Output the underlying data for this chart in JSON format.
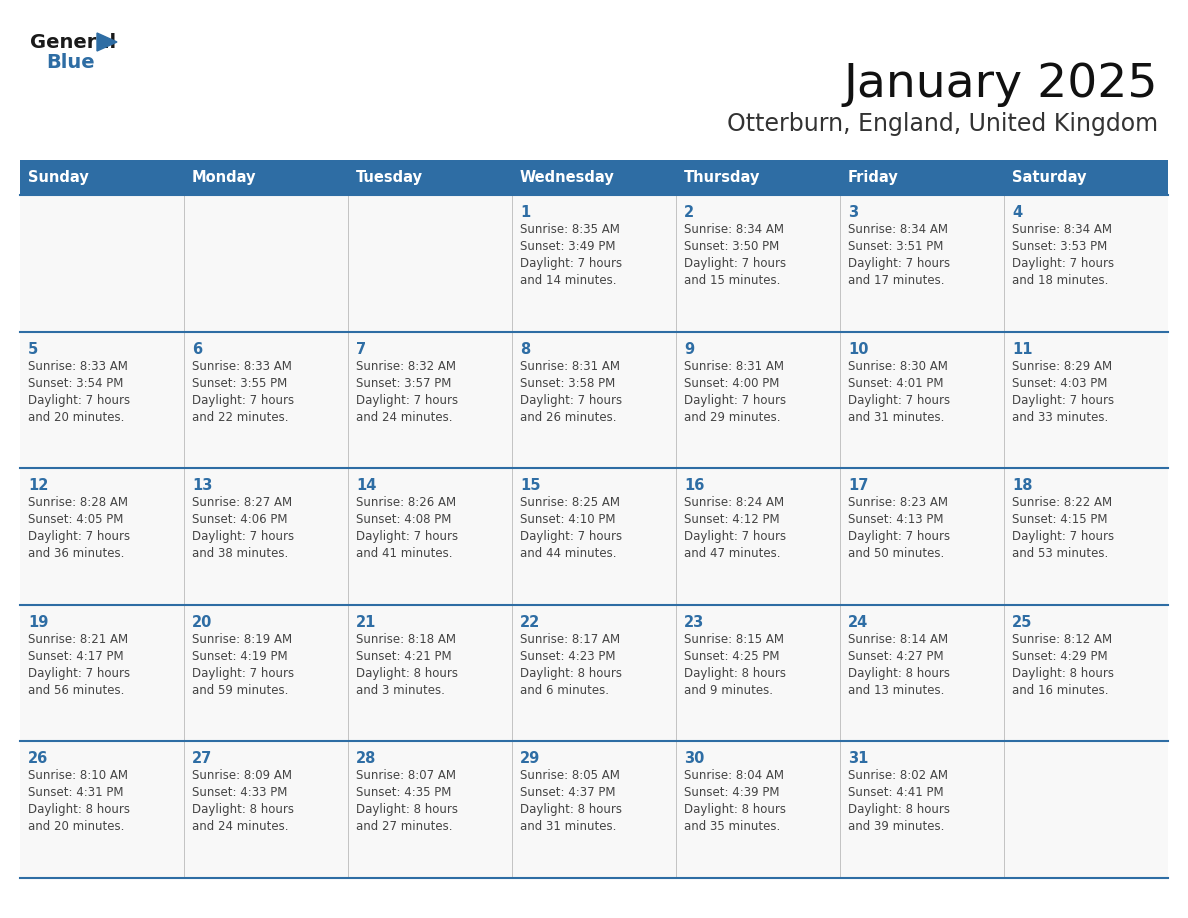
{
  "title": "January 2025",
  "subtitle": "Otterburn, England, United Kingdom",
  "header_bg": "#2E6DA4",
  "header_text_color": "#FFFFFF",
  "cell_bg": "#F8F8F8",
  "cell_bg_alt": "#FFFFFF",
  "day_number_color": "#2E6DA4",
  "text_color": "#444444",
  "line_color": "#2E6DA4",
  "border_color": "#2E6DA4",
  "days_of_week": [
    "Sunday",
    "Monday",
    "Tuesday",
    "Wednesday",
    "Thursday",
    "Friday",
    "Saturday"
  ],
  "weeks": [
    [
      {
        "date": "",
        "lines": []
      },
      {
        "date": "",
        "lines": []
      },
      {
        "date": "",
        "lines": []
      },
      {
        "date": "1",
        "lines": [
          "Sunrise: 8:35 AM",
          "Sunset: 3:49 PM",
          "Daylight: 7 hours",
          "and 14 minutes."
        ]
      },
      {
        "date": "2",
        "lines": [
          "Sunrise: 8:34 AM",
          "Sunset: 3:50 PM",
          "Daylight: 7 hours",
          "and 15 minutes."
        ]
      },
      {
        "date": "3",
        "lines": [
          "Sunrise: 8:34 AM",
          "Sunset: 3:51 PM",
          "Daylight: 7 hours",
          "and 17 minutes."
        ]
      },
      {
        "date": "4",
        "lines": [
          "Sunrise: 8:34 AM",
          "Sunset: 3:53 PM",
          "Daylight: 7 hours",
          "and 18 minutes."
        ]
      }
    ],
    [
      {
        "date": "5",
        "lines": [
          "Sunrise: 8:33 AM",
          "Sunset: 3:54 PM",
          "Daylight: 7 hours",
          "and 20 minutes."
        ]
      },
      {
        "date": "6",
        "lines": [
          "Sunrise: 8:33 AM",
          "Sunset: 3:55 PM",
          "Daylight: 7 hours",
          "and 22 minutes."
        ]
      },
      {
        "date": "7",
        "lines": [
          "Sunrise: 8:32 AM",
          "Sunset: 3:57 PM",
          "Daylight: 7 hours",
          "and 24 minutes."
        ]
      },
      {
        "date": "8",
        "lines": [
          "Sunrise: 8:31 AM",
          "Sunset: 3:58 PM",
          "Daylight: 7 hours",
          "and 26 minutes."
        ]
      },
      {
        "date": "9",
        "lines": [
          "Sunrise: 8:31 AM",
          "Sunset: 4:00 PM",
          "Daylight: 7 hours",
          "and 29 minutes."
        ]
      },
      {
        "date": "10",
        "lines": [
          "Sunrise: 8:30 AM",
          "Sunset: 4:01 PM",
          "Daylight: 7 hours",
          "and 31 minutes."
        ]
      },
      {
        "date": "11",
        "lines": [
          "Sunrise: 8:29 AM",
          "Sunset: 4:03 PM",
          "Daylight: 7 hours",
          "and 33 minutes."
        ]
      }
    ],
    [
      {
        "date": "12",
        "lines": [
          "Sunrise: 8:28 AM",
          "Sunset: 4:05 PM",
          "Daylight: 7 hours",
          "and 36 minutes."
        ]
      },
      {
        "date": "13",
        "lines": [
          "Sunrise: 8:27 AM",
          "Sunset: 4:06 PM",
          "Daylight: 7 hours",
          "and 38 minutes."
        ]
      },
      {
        "date": "14",
        "lines": [
          "Sunrise: 8:26 AM",
          "Sunset: 4:08 PM",
          "Daylight: 7 hours",
          "and 41 minutes."
        ]
      },
      {
        "date": "15",
        "lines": [
          "Sunrise: 8:25 AM",
          "Sunset: 4:10 PM",
          "Daylight: 7 hours",
          "and 44 minutes."
        ]
      },
      {
        "date": "16",
        "lines": [
          "Sunrise: 8:24 AM",
          "Sunset: 4:12 PM",
          "Daylight: 7 hours",
          "and 47 minutes."
        ]
      },
      {
        "date": "17",
        "lines": [
          "Sunrise: 8:23 AM",
          "Sunset: 4:13 PM",
          "Daylight: 7 hours",
          "and 50 minutes."
        ]
      },
      {
        "date": "18",
        "lines": [
          "Sunrise: 8:22 AM",
          "Sunset: 4:15 PM",
          "Daylight: 7 hours",
          "and 53 minutes."
        ]
      }
    ],
    [
      {
        "date": "19",
        "lines": [
          "Sunrise: 8:21 AM",
          "Sunset: 4:17 PM",
          "Daylight: 7 hours",
          "and 56 minutes."
        ]
      },
      {
        "date": "20",
        "lines": [
          "Sunrise: 8:19 AM",
          "Sunset: 4:19 PM",
          "Daylight: 7 hours",
          "and 59 minutes."
        ]
      },
      {
        "date": "21",
        "lines": [
          "Sunrise: 8:18 AM",
          "Sunset: 4:21 PM",
          "Daylight: 8 hours",
          "and 3 minutes."
        ]
      },
      {
        "date": "22",
        "lines": [
          "Sunrise: 8:17 AM",
          "Sunset: 4:23 PM",
          "Daylight: 8 hours",
          "and 6 minutes."
        ]
      },
      {
        "date": "23",
        "lines": [
          "Sunrise: 8:15 AM",
          "Sunset: 4:25 PM",
          "Daylight: 8 hours",
          "and 9 minutes."
        ]
      },
      {
        "date": "24",
        "lines": [
          "Sunrise: 8:14 AM",
          "Sunset: 4:27 PM",
          "Daylight: 8 hours",
          "and 13 minutes."
        ]
      },
      {
        "date": "25",
        "lines": [
          "Sunrise: 8:12 AM",
          "Sunset: 4:29 PM",
          "Daylight: 8 hours",
          "and 16 minutes."
        ]
      }
    ],
    [
      {
        "date": "26",
        "lines": [
          "Sunrise: 8:10 AM",
          "Sunset: 4:31 PM",
          "Daylight: 8 hours",
          "and 20 minutes."
        ]
      },
      {
        "date": "27",
        "lines": [
          "Sunrise: 8:09 AM",
          "Sunset: 4:33 PM",
          "Daylight: 8 hours",
          "and 24 minutes."
        ]
      },
      {
        "date": "28",
        "lines": [
          "Sunrise: 8:07 AM",
          "Sunset: 4:35 PM",
          "Daylight: 8 hours",
          "and 27 minutes."
        ]
      },
      {
        "date": "29",
        "lines": [
          "Sunrise: 8:05 AM",
          "Sunset: 4:37 PM",
          "Daylight: 8 hours",
          "and 31 minutes."
        ]
      },
      {
        "date": "30",
        "lines": [
          "Sunrise: 8:04 AM",
          "Sunset: 4:39 PM",
          "Daylight: 8 hours",
          "and 35 minutes."
        ]
      },
      {
        "date": "31",
        "lines": [
          "Sunrise: 8:02 AM",
          "Sunset: 4:41 PM",
          "Daylight: 8 hours",
          "and 39 minutes."
        ]
      },
      {
        "date": "",
        "lines": []
      }
    ]
  ],
  "logo_general_color": "#1a1a1a",
  "logo_blue_color": "#2E6DA4",
  "logo_triangle_color": "#2E6DA4"
}
